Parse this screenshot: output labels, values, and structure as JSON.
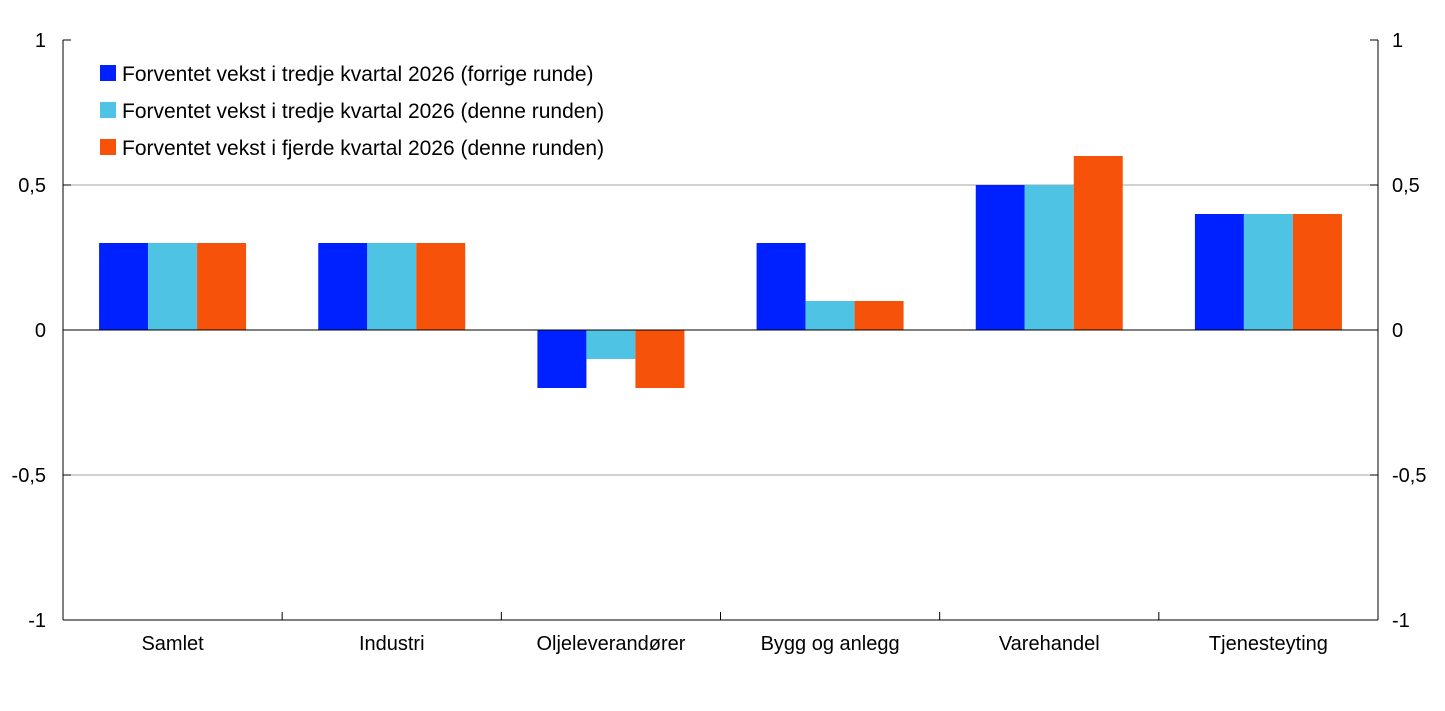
{
  "chart_data": {
    "type": "bar",
    "title": "",
    "xlabel": "",
    "ylabel": "",
    "ylim": [
      -1,
      1
    ],
    "yticks": [
      -1,
      -0.5,
      0,
      0.5,
      1
    ],
    "ytick_labels": [
      "-1",
      "-0,5",
      "0",
      "0,5",
      "1"
    ],
    "grid": true,
    "legend_position": "top-left",
    "categories": [
      "Samlet",
      "Industri",
      "Oljeleverandører",
      "Bygg og anlegg",
      "Varehandel",
      "Tjenesteyting"
    ],
    "series": [
      {
        "name": "Forventet vekst i tredje kvartal 2026 (forrige runde)",
        "color": "#0021ff",
        "values": [
          0.3,
          0.3,
          -0.2,
          0.3,
          0.5,
          0.4
        ]
      },
      {
        "name": "Forventet vekst i tredje kvartal 2026 (denne runden)",
        "color": "#4fc3e3",
        "values": [
          0.3,
          0.3,
          -0.1,
          0.1,
          0.5,
          0.4
        ]
      },
      {
        "name": "Forventet vekst i fjerde kvartal 2026 (denne runden)",
        "color": "#f7520a",
        "values": [
          0.3,
          0.3,
          -0.2,
          0.1,
          0.6,
          0.4
        ]
      }
    ]
  }
}
